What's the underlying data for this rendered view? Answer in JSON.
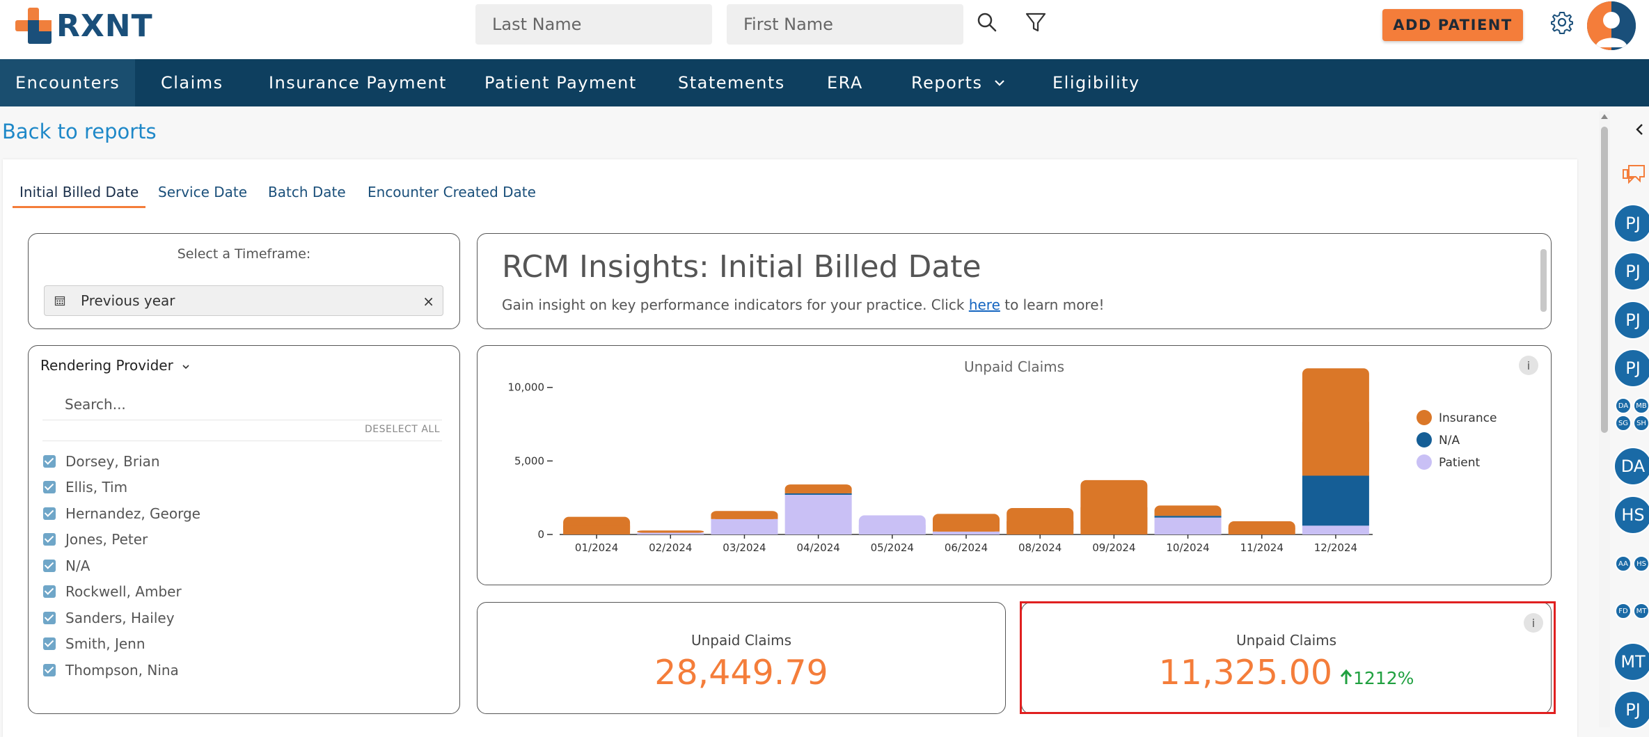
{
  "header": {
    "logo_text": "RXNT",
    "last_name_placeholder": "Last Name",
    "first_name_placeholder": "First Name",
    "add_patient_label": "ADD PATIENT"
  },
  "nav": {
    "items": [
      "Encounters",
      "Claims",
      "Insurance Payment",
      "Patient Payment",
      "Statements",
      "ERA",
      "Reports",
      "Eligibility"
    ]
  },
  "back_link": "Back to reports",
  "tabs": [
    "Initial Billed Date",
    "Service Date",
    "Batch Date",
    "Encounter Created Date"
  ],
  "timeframe": {
    "label": "Select a Timeframe:",
    "value": "Previous year",
    "clear": "×"
  },
  "insights": {
    "title": "RCM Insights: Initial Billed Date",
    "subtitle_before": "Gain insight on key performance indicators for your practice. Click ",
    "link_text": "here",
    "subtitle_after": " to learn more!"
  },
  "providers": {
    "header": "Rendering Provider",
    "search_placeholder": "Search...",
    "deselect_all": "DESELECT ALL",
    "items": [
      "Dorsey, Brian",
      "Ellis, Tim",
      "Hernandez, George",
      "Jones, Peter",
      "N/A",
      "Rockwell, Amber",
      "Sanders, Hailey",
      "Smith, Jenn",
      "Thompson, Nina"
    ]
  },
  "chart_data": {
    "type": "bar",
    "title": "Unpaid Claims",
    "stacked": true,
    "categories": [
      "01/2024",
      "02/2024",
      "03/2024",
      "04/2024",
      "05/2024",
      "06/2024",
      "08/2024",
      "09/2024",
      "10/2024",
      "11/2024",
      "12/2024"
    ],
    "series": [
      {
        "name": "Patient",
        "color": "#c9c0f5",
        "values": [
          0,
          120,
          1050,
          2700,
          1300,
          200,
          0,
          0,
          1150,
          0,
          600
        ]
      },
      {
        "name": "N/A",
        "color": "#155e96",
        "values": [
          0,
          0,
          0,
          100,
          0,
          0,
          0,
          0,
          120,
          0,
          3400
        ]
      },
      {
        "name": "Insurance",
        "color": "#da7728",
        "values": [
          1200,
          150,
          550,
          600,
          0,
          1200,
          1800,
          3700,
          700,
          900,
          7300
        ]
      }
    ],
    "yticks": [
      0,
      5000,
      10000
    ],
    "ytick_labels": [
      "0",
      "5,000",
      "10,000"
    ],
    "ylim": [
      0,
      11500
    ],
    "legend_order": [
      "Insurance",
      "N/A",
      "Patient"
    ],
    "legend_placement": "right"
  },
  "kpis": [
    {
      "label": "Unpaid Claims",
      "value": "28,449.79"
    },
    {
      "label": "Unpaid Claims",
      "value": "11,325.00",
      "trend": "1212%"
    }
  ],
  "info_glyph": "i",
  "sidebar_badges": {
    "large": [
      "PJ",
      "PJ",
      "PJ",
      "PJ",
      "DA",
      "HS",
      "MT",
      "PJ"
    ],
    "small": [
      "DA",
      "MB",
      "SG",
      "SH",
      "AA",
      "HS",
      "FD",
      "MT"
    ]
  },
  "colors": {
    "accent": "#f47d3a",
    "navy": "#0e3f5f",
    "link": "#1e88c8",
    "trend_up": "#20a040"
  }
}
